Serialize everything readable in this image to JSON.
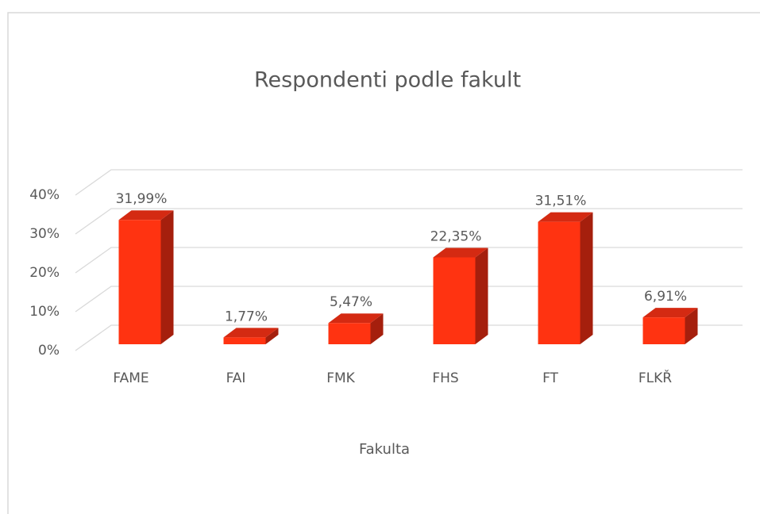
{
  "chart_data": {
    "type": "bar3d",
    "title": "Respondenti podle fakult",
    "x_label": "Fakulta",
    "categories": [
      "FAME",
      "FAI",
      "FMK",
      "FHS",
      "FT",
      "FLKŘ"
    ],
    "values": [
      31.99,
      1.77,
      5.47,
      22.35,
      31.51,
      6.91
    ],
    "value_labels": [
      "31,99%",
      "1,77%",
      "5,47%",
      "22,35%",
      "31,51%",
      "6,91%"
    ],
    "color": "#ff3311",
    "ylim": [
      0,
      40
    ],
    "yticks": [
      {
        "value": 0,
        "label": "0%"
      },
      {
        "value": 10,
        "label": "10%"
      },
      {
        "value": 20,
        "label": "20%"
      },
      {
        "value": 30,
        "label": "30%"
      },
      {
        "value": 40,
        "label": "40%"
      }
    ],
    "grid": true
  }
}
